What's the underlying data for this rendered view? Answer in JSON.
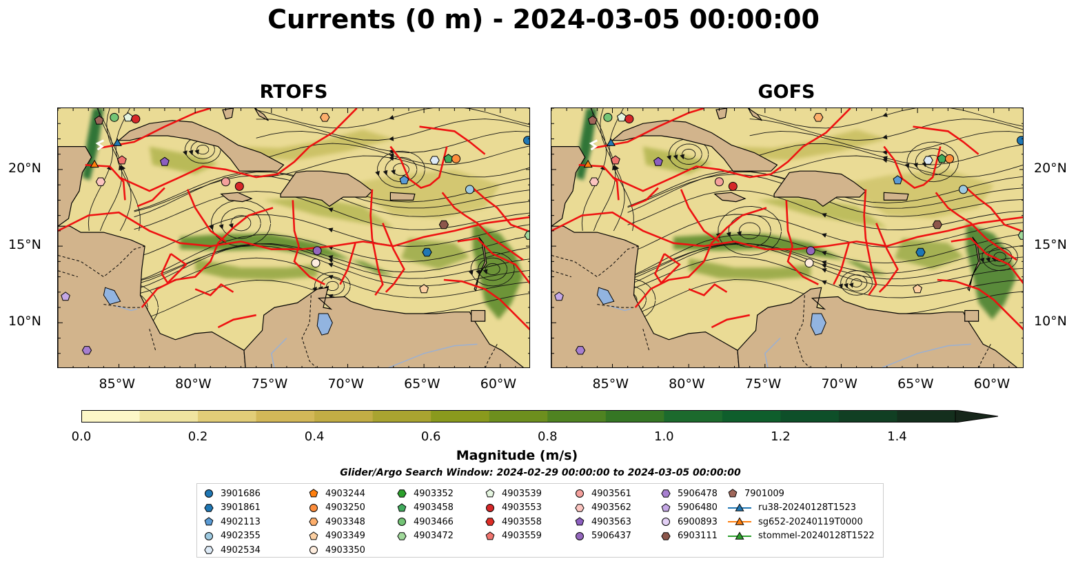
{
  "title": "Currents (0 m) - 2024-03-05 00:00:00",
  "panels": [
    {
      "title": "RTOFS"
    },
    {
      "title": "GOFS"
    }
  ],
  "axes": {
    "lon_ticks": [
      "85°W",
      "80°W",
      "75°W",
      "70°W",
      "65°W",
      "60°W"
    ],
    "lat_ticks": [
      "20°N",
      "15°N",
      "10°N"
    ],
    "lon_range": [
      -89,
      -58
    ],
    "lat_range": [
      7,
      24
    ]
  },
  "colorbar": {
    "label": "Magnitude (m/s)",
    "ticks": [
      "0.0",
      "0.2",
      "0.4",
      "0.6",
      "0.8",
      "1.0",
      "1.2",
      "1.4"
    ],
    "range": [
      0,
      1.5
    ],
    "extend": "max",
    "colors": [
      "#fdf7c7",
      "#f0e4a0",
      "#e2cd78",
      "#d3b858",
      "#c2ad45",
      "#a9a430",
      "#8a9a1d",
      "#6d8f1e",
      "#4f8321",
      "#357624",
      "#1c6a2d",
      "#0f5e2c",
      "#0e4f29",
      "#113f23",
      "#142f1d",
      "#16261a"
    ]
  },
  "search_window": "Glider/Argo Search Window: 2024-02-29 00:00:00 to 2024-03-05 00:00:00",
  "legend": [
    {
      "label": "3901686",
      "marker": "circle",
      "color": "#1f77b4"
    },
    {
      "label": "3901861",
      "marker": "hexagon",
      "color": "#1f77b4"
    },
    {
      "label": "4902113",
      "marker": "pentagon",
      "color": "#5a9bd5"
    },
    {
      "label": "4902355",
      "marker": "circle",
      "color": "#9ecae1"
    },
    {
      "label": "4902534",
      "marker": "hexagon",
      "color": "#deebf7"
    },
    {
      "label": "4903244",
      "marker": "pentagon",
      "color": "#ff7f0e"
    },
    {
      "label": "4903250",
      "marker": "circle",
      "color": "#fd8d3c"
    },
    {
      "label": "4903348",
      "marker": "hexagon",
      "color": "#fdae6b"
    },
    {
      "label": "4903349",
      "marker": "pentagon",
      "color": "#fdd0a2"
    },
    {
      "label": "4903350",
      "marker": "circle",
      "color": "#feedde"
    },
    {
      "label": "4903352",
      "marker": "hexagon",
      "color": "#2ca02c"
    },
    {
      "label": "4903458",
      "marker": "pentagon",
      "color": "#41ab5d"
    },
    {
      "label": "4903466",
      "marker": "circle",
      "color": "#74c476"
    },
    {
      "label": "4903472",
      "marker": "hexagon",
      "color": "#a1d99b"
    },
    {
      "label": "4903539",
      "marker": "pentagon",
      "color": "#e5f5e0"
    },
    {
      "label": "4903553",
      "marker": "circle",
      "color": "#d62728"
    },
    {
      "label": "4903558",
      "marker": "hexagon",
      "color": "#de2d26"
    },
    {
      "label": "4903559",
      "marker": "pentagon",
      "color": "#f0746e"
    },
    {
      "label": "4903561",
      "marker": "circle",
      "color": "#f4a09c"
    },
    {
      "label": "4903562",
      "marker": "hexagon",
      "color": "#fcc5c0"
    },
    {
      "label": "4903563",
      "marker": "pentagon",
      "color": "#8c5fc0"
    },
    {
      "label": "5906437",
      "marker": "circle",
      "color": "#9467bd"
    },
    {
      "label": "5906478",
      "marker": "hexagon",
      "color": "#a77fd0"
    },
    {
      "label": "5906480",
      "marker": "pentagon",
      "color": "#c5a8e6"
    },
    {
      "label": "6900893",
      "marker": "circle",
      "color": "#e3d0f5"
    },
    {
      "label": "6903111",
      "marker": "hexagon",
      "color": "#8c564b"
    },
    {
      "label": "7901009",
      "marker": "pentagon",
      "color": "#a0675a"
    },
    {
      "label": "ru38-20240128T1523",
      "marker": "triangle-line",
      "color": "#1f77b4"
    },
    {
      "label": "sg652-20240119T0000",
      "marker": "triangle-line",
      "color": "#ff7f0e"
    },
    {
      "label": "stommel-20240128T1522",
      "marker": "triangle-line",
      "color": "#2ca02c"
    }
  ],
  "markers_on_map": [
    {
      "lon": -58.2,
      "lat": 21.9,
      "legend": 0
    },
    {
      "lon": -63.7,
      "lat": 16.4,
      "legend": 25
    },
    {
      "lon": -62.0,
      "lat": 18.7,
      "legend": 3
    },
    {
      "lon": -66.3,
      "lat": 19.3,
      "legend": 2
    },
    {
      "lon": -64.3,
      "lat": 20.6,
      "legend": 4
    },
    {
      "lon": -63.4,
      "lat": 20.7,
      "legend": 11
    },
    {
      "lon": -62.9,
      "lat": 20.7,
      "legend": 6
    },
    {
      "lon": -64.8,
      "lat": 14.6,
      "legend": 1
    },
    {
      "lon": -58.1,
      "lat": 15.7,
      "legend": 13
    },
    {
      "lon": -65.0,
      "lat": 12.2,
      "legend": 8
    },
    {
      "lon": -72.0,
      "lat": 14.7,
      "legend": 21
    },
    {
      "lon": -72.1,
      "lat": 13.9,
      "legend": 9
    },
    {
      "lon": -71.5,
      "lat": 23.4,
      "legend": 7
    },
    {
      "lon": -77.1,
      "lat": 18.9,
      "legend": 15
    },
    {
      "lon": -78.0,
      "lat": 19.2,
      "legend": 18
    },
    {
      "lon": -82.0,
      "lat": 20.5,
      "legend": 20
    },
    {
      "lon": -84.8,
      "lat": 20.6,
      "legend": 17
    },
    {
      "lon": -86.2,
      "lat": 19.2,
      "legend": 19
    },
    {
      "lon": -85.3,
      "lat": 23.4,
      "legend": 12
    },
    {
      "lon": -84.4,
      "lat": 23.4,
      "legend": 14
    },
    {
      "lon": -83.9,
      "lat": 23.3,
      "legend": 15
    },
    {
      "lon": -86.3,
      "lat": 23.2,
      "legend": 26
    },
    {
      "lon": -88.5,
      "lat": 11.7,
      "legend": 23
    },
    {
      "lon": -87.1,
      "lat": 8.2,
      "legend": 22
    },
    {
      "lon": -85.1,
      "lat": 21.7,
      "legend": 27
    },
    {
      "lon": -86.6,
      "lat": 20.3,
      "legend": 28
    }
  ]
}
